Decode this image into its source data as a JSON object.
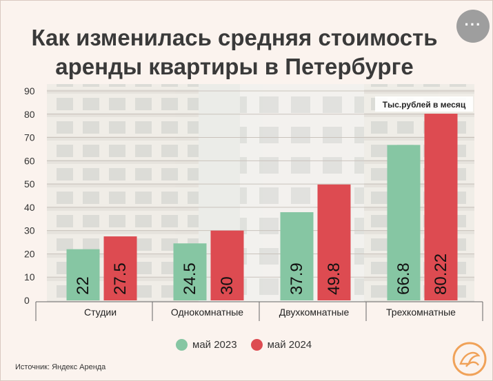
{
  "title": "Как изменилась средняя стоимость аренды квартиры в Петербурге",
  "menu": {
    "label": "···"
  },
  "unit_note": "Тыс.рублей в месяц",
  "source": "Источник: Яндекс Аренда",
  "chart_data": {
    "type": "bar",
    "title": "Как изменилась средняя стоимость аренды квартиры в Петербурге",
    "xlabel": "",
    "ylabel": "",
    "categories": [
      "Студии",
      "Однокомнатные",
      "Двухкомнатные",
      "Трехкомнатные"
    ],
    "series": [
      {
        "name": "май 2023",
        "color": "#86c6a3",
        "values": [
          22,
          24.5,
          37.9,
          66.8
        ],
        "labels": [
          "22",
          "24.5",
          "37.9",
          "66.8"
        ]
      },
      {
        "name": "май 2024",
        "color": "#dd4b51",
        "values": [
          27.5,
          30,
          49.8,
          80.22
        ],
        "labels": [
          "27.5",
          "30",
          "49.8",
          "80.22"
        ]
      }
    ],
    "ylim": [
      0,
      90
    ],
    "yticks": [
      0,
      10,
      20,
      30,
      40,
      50,
      60,
      70,
      80,
      90
    ],
    "grid": true,
    "legend": "bottom-center",
    "annotation": "Тыс.рублей в месяц"
  }
}
